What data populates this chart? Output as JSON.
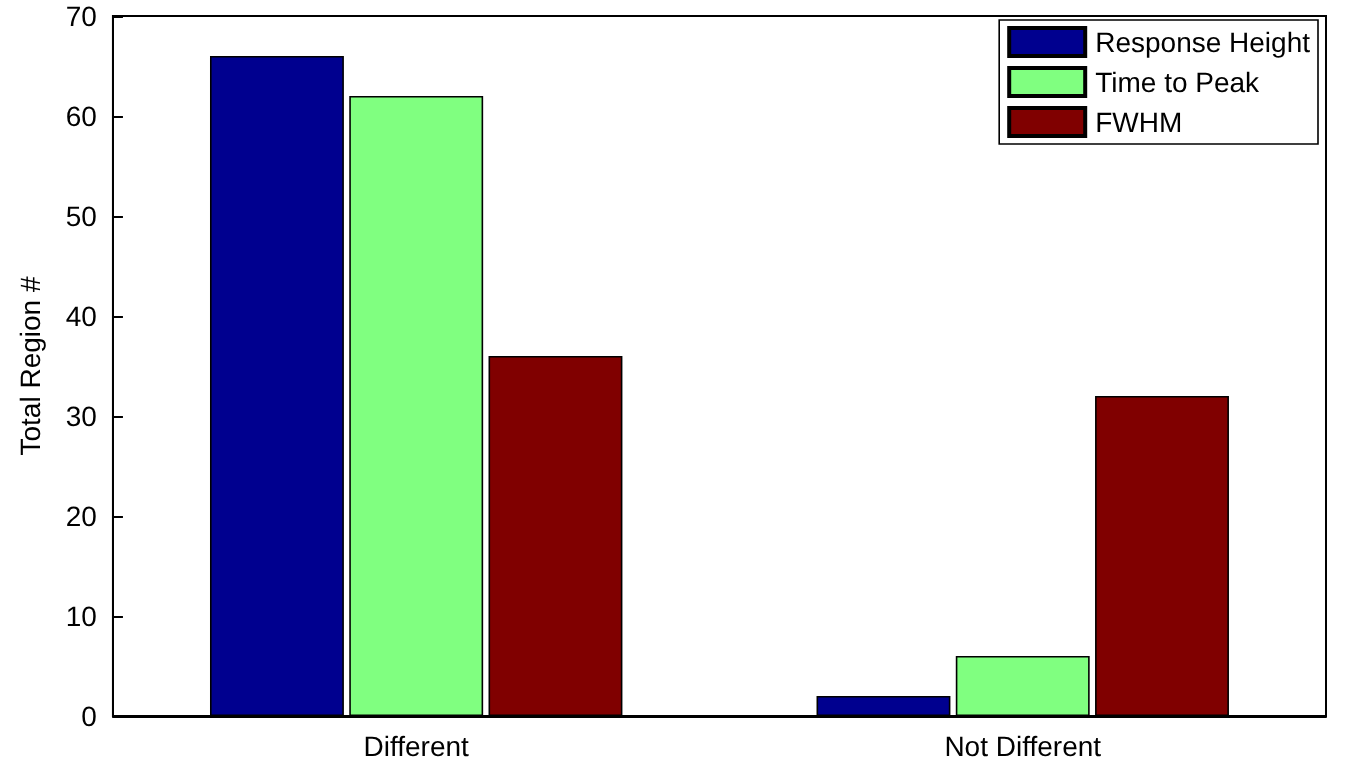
{
  "chart_data": {
    "type": "bar",
    "ylabel": "Total Region #",
    "categories": [
      "Different",
      "Not Different"
    ],
    "series": [
      {
        "name": "Response Height",
        "color": "#00008f",
        "values": [
          66,
          2
        ]
      },
      {
        "name": "Time to Peak",
        "color": "#80ff80",
        "values": [
          62,
          6
        ]
      },
      {
        "name": "FWHM",
        "color": "#800000",
        "values": [
          36,
          32
        ]
      }
    ],
    "ylim": [
      0,
      70
    ],
    "yticks": [
      0,
      10,
      20,
      30,
      40,
      50,
      60,
      70
    ],
    "grid": false,
    "legend": "top right"
  }
}
